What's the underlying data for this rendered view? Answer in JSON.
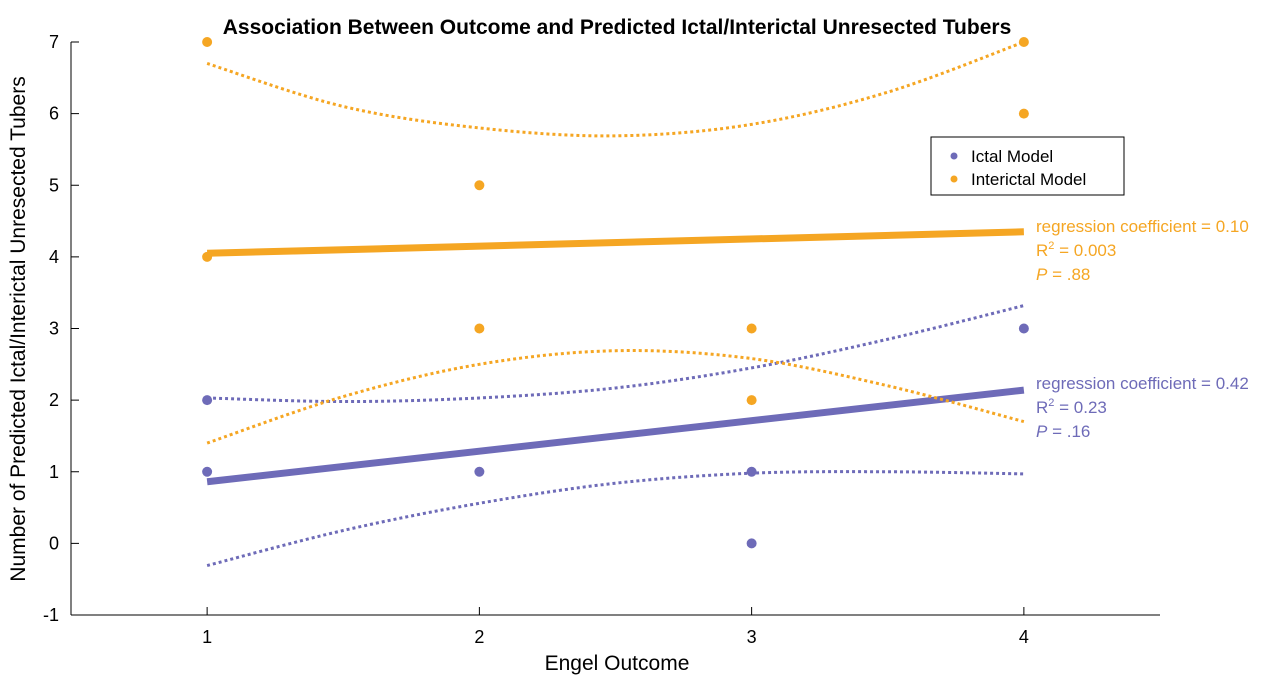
{
  "chart_data": {
    "type": "scatter",
    "title": "Association Between Outcome and Predicted Ictal/Interictal Unresected Tubers",
    "xlabel": "Engel Outcome",
    "ylabel": "Number of Predicted Ictal/Interictal Unresected Tubers",
    "xlim": [
      0.5,
      4.5
    ],
    "ylim": [
      -1,
      7
    ],
    "xticks": [
      "1",
      "2",
      "3",
      "4"
    ],
    "yticks": [
      "-1",
      "0",
      "1",
      "2",
      "3",
      "4",
      "5",
      "6",
      "7"
    ],
    "grid": false,
    "legend_position": "right",
    "series": [
      {
        "name": "Ictal Model",
        "color": "#6e6bb8",
        "points": [
          [
            1,
            1
          ],
          [
            1,
            2
          ],
          [
            2,
            1
          ],
          [
            3,
            0
          ],
          [
            3,
            1
          ],
          [
            4,
            3
          ]
        ],
        "fit": {
          "x": [
            1,
            4
          ],
          "y": [
            0.86,
            2.14
          ]
        },
        "ci_upper": {
          "x": [
            1,
            1.5,
            2,
            2.5,
            3,
            3.5,
            4
          ],
          "y": [
            2.03,
            1.98,
            2.03,
            2.17,
            2.45,
            2.85,
            3.32
          ]
        },
        "ci_lower": {
          "x": [
            1,
            1.5,
            2,
            2.5,
            3,
            3.5,
            4
          ],
          "y": [
            -0.31,
            0.18,
            0.56,
            0.84,
            0.98,
            1.0,
            0.97
          ]
        },
        "annotation": {
          "coef": "regression coefficient = 0.42",
          "r2_prefix": "R",
          "r2_sup": "2",
          "r2_value": " = 0.23",
          "p_symbol": "P",
          "p_value": " = .16"
        }
      },
      {
        "name": "Interictal Model",
        "color": "#f5a623",
        "points": [
          [
            1,
            7
          ],
          [
            1,
            4
          ],
          [
            2,
            5
          ],
          [
            2,
            3
          ],
          [
            3,
            3
          ],
          [
            3,
            2
          ],
          [
            4,
            7
          ],
          [
            4,
            6
          ]
        ],
        "fit": {
          "x": [
            1,
            4
          ],
          "y": [
            4.05,
            4.35
          ]
        },
        "ci_upper": {
          "x": [
            1,
            1.5,
            2,
            2.5,
            3,
            3.5,
            4
          ],
          "y": [
            6.7,
            6.1,
            5.8,
            5.69,
            5.85,
            6.3,
            7.0
          ]
        },
        "ci_lower": {
          "x": [
            1,
            1.5,
            2,
            2.5,
            3,
            3.5,
            4
          ],
          "y": [
            1.4,
            2.05,
            2.5,
            2.69,
            2.58,
            2.2,
            1.7
          ]
        },
        "annotation": {
          "coef": "regression coefficient = 0.10",
          "r2_prefix": "R",
          "r2_sup": "2",
          "r2_value": " = 0.003",
          "p_symbol": "P",
          "p_value": " = .88"
        }
      }
    ]
  }
}
